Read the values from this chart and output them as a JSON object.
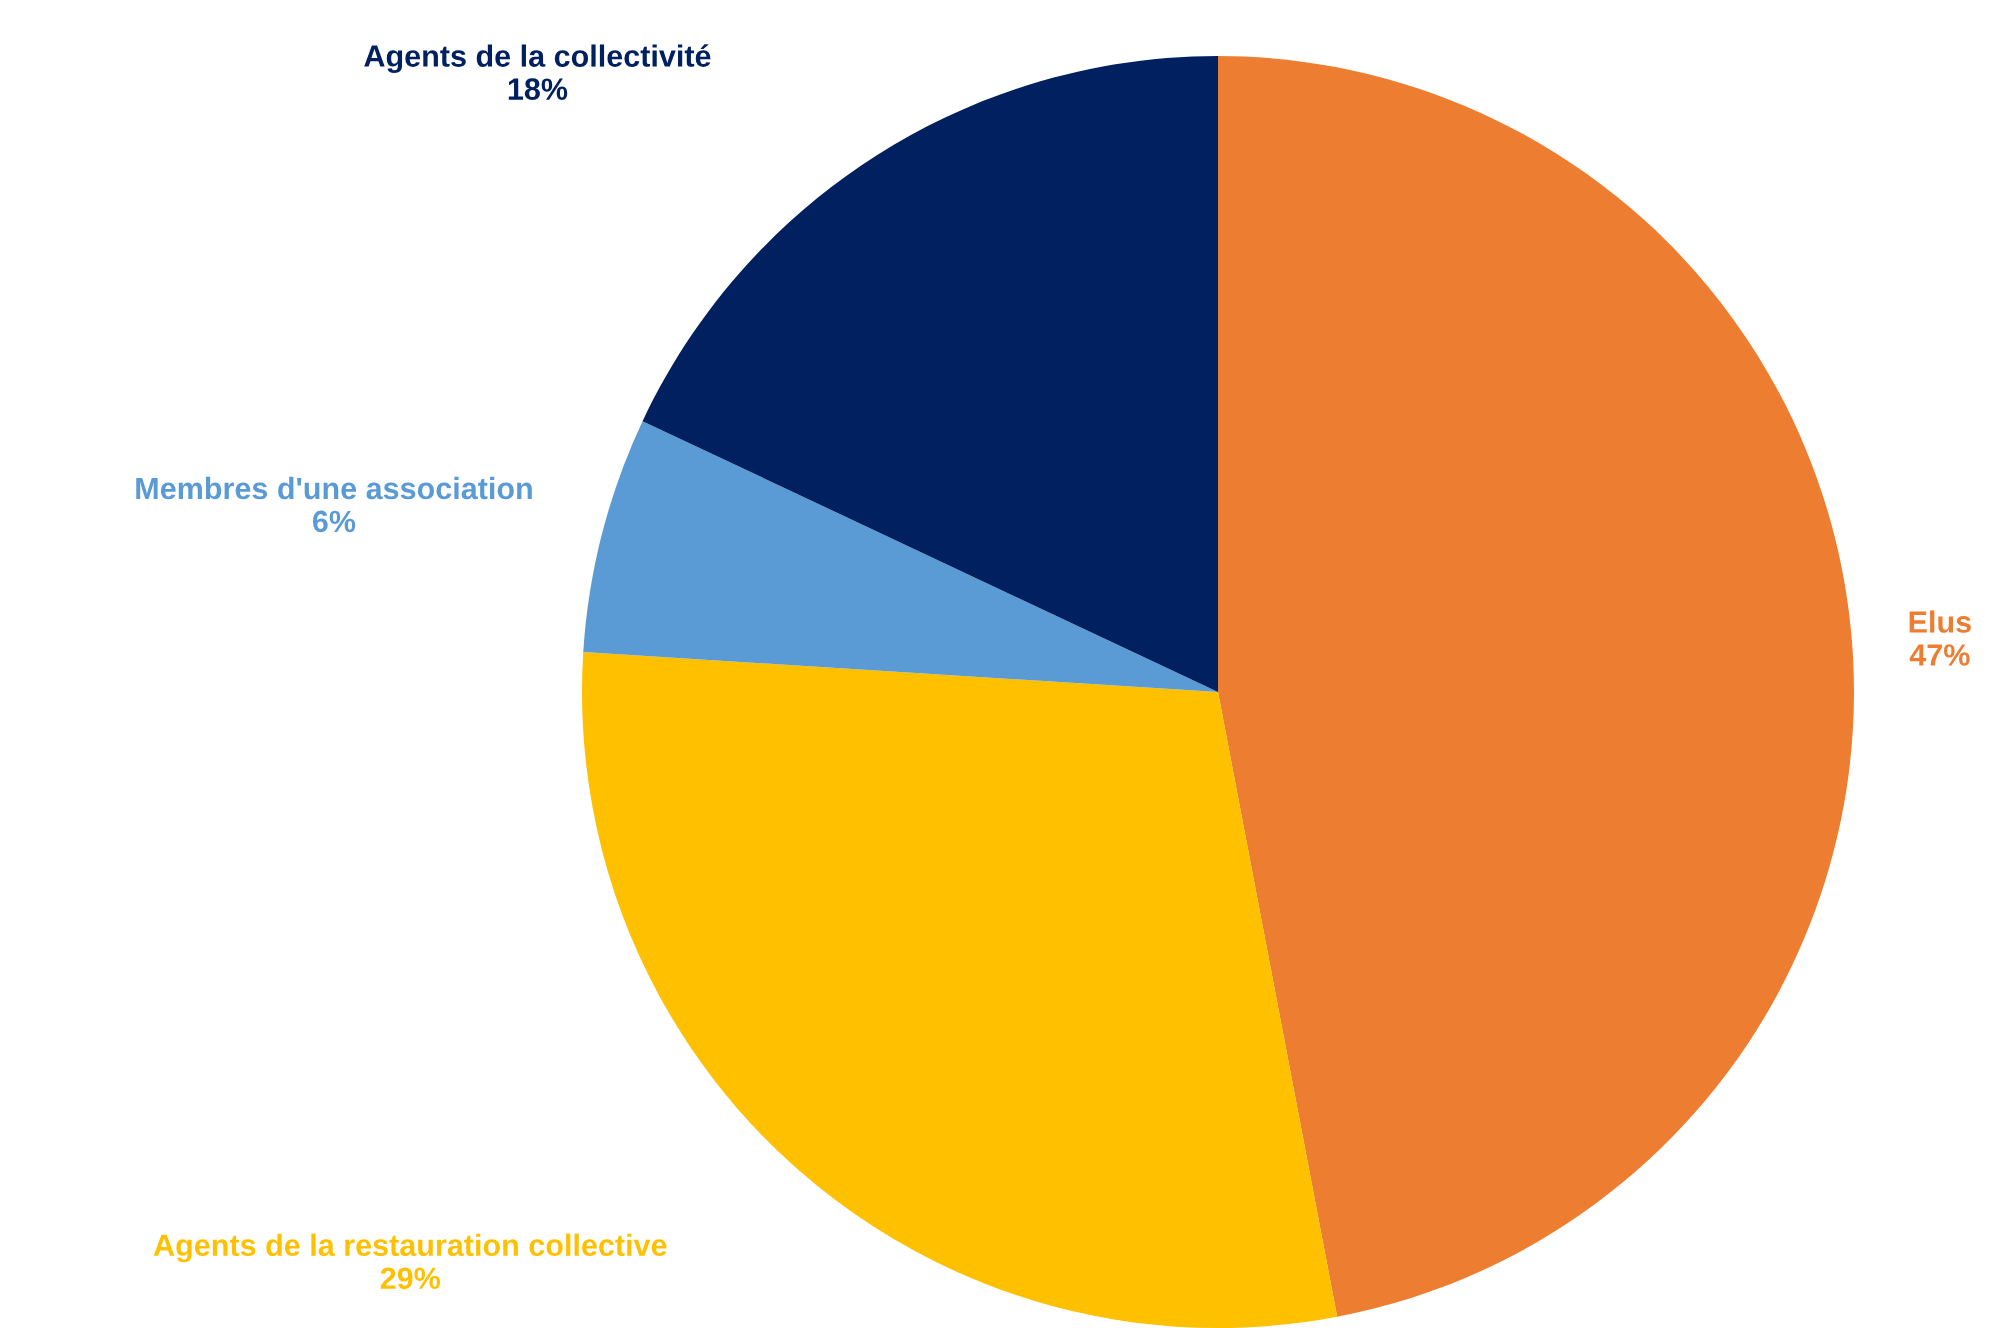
{
  "chart_data": {
    "type": "pie",
    "categories": [
      "Elus",
      "Agents de la restauration collective",
      "Membres d'une association",
      "Agents de la collectivité"
    ],
    "values": [
      47,
      29,
      6,
      18
    ],
    "colors": [
      "#ed7d31",
      "#ffc000",
      "#5b9bd5",
      "#002060"
    ],
    "value_labels": [
      "47%",
      "29%",
      "6%",
      "18%"
    ],
    "legend": false
  }
}
